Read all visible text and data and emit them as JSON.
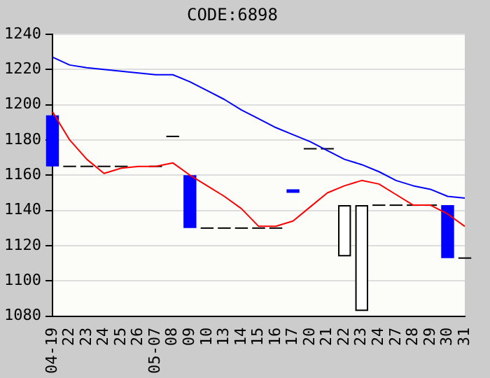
{
  "chart_data": {
    "type": "candlestick",
    "title": "CODE:6898",
    "categories": [
      "04-19",
      "22",
      "23",
      "24",
      "25",
      "26",
      "05-07",
      "08",
      "09",
      "10",
      "13",
      "14",
      "15",
      "16",
      "17",
      "20",
      "21",
      "22",
      "23",
      "24",
      "27",
      "28",
      "29",
      "30",
      "31"
    ],
    "ohlc": [
      [
        1194,
        1194,
        1165,
        1165
      ],
      [
        1165,
        1165,
        1165,
        1165
      ],
      [
        1165,
        1165,
        1165,
        1165
      ],
      [
        1165,
        1165,
        1165,
        1165
      ],
      [
        1165,
        1165,
        1165,
        1165
      ],
      null,
      [
        1165,
        1165,
        1165,
        1165
      ],
      [
        1182,
        1182,
        1182,
        1182
      ],
      [
        1160,
        1160,
        1130,
        1130
      ],
      [
        1130,
        1130,
        1130,
        1130
      ],
      [
        1130,
        1130,
        1130,
        1130
      ],
      [
        1130,
        1130,
        1130,
        1130
      ],
      [
        1130,
        1130,
        1130,
        1130
      ],
      [
        1130,
        1130,
        1130,
        1130
      ],
      [
        1152,
        1152,
        1150,
        1150
      ],
      [
        1175,
        1175,
        1175,
        1175
      ],
      [
        1175,
        1175,
        1175,
        1175
      ],
      [
        1114,
        1143,
        1114,
        1143
      ],
      [
        1083,
        1143,
        1083,
        1143
      ],
      [
        1143,
        1143,
        1143,
        1143
      ],
      [
        1143,
        1143,
        1143,
        1143
      ],
      [
        1143,
        1143,
        1143,
        1143
      ],
      [
        1143,
        1143,
        1143,
        1143
      ],
      [
        1143,
        1143,
        1113,
        1113
      ],
      [
        1113,
        1113,
        1113,
        1113
      ]
    ],
    "series": [
      {
        "type": "line",
        "color": "#0000ff",
        "values": [
          1227,
          1222.5,
          1221,
          1220,
          1219,
          1218,
          1217,
          1217,
          1213,
          1208,
          1203,
          1197,
          1192,
          1187,
          1183,
          1179,
          1174,
          1169,
          1166,
          1162,
          1157,
          1154,
          1152,
          1148,
          1147
        ]
      },
      {
        "type": "line",
        "color": "#ff0000",
        "values": [
          1196,
          1180,
          1169,
          1161,
          1164,
          1165,
          1165,
          1167,
          1160,
          1154,
          1148,
          1141,
          1131,
          1131,
          1134,
          1142,
          1150,
          1154,
          1157,
          1155,
          1149,
          1143,
          1143,
          1138,
          1131
        ]
      }
    ],
    "ylim": [
      1080,
      1240
    ],
    "yticks": [
      1080,
      1100,
      1120,
      1140,
      1160,
      1180,
      1200,
      1220,
      1240
    ],
    "grid": "y",
    "legend": false,
    "marker": "none"
  }
}
